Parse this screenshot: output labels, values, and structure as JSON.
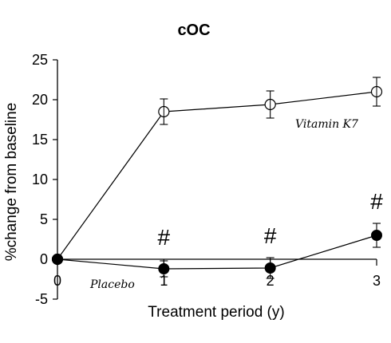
{
  "chart_data": {
    "type": "line",
    "title": "cOC",
    "xlabel": "Treatment period (y)",
    "ylabel": "%change from baseline",
    "x": [
      0,
      1,
      2,
      3
    ],
    "xlim": [
      0,
      3
    ],
    "ylim": [
      -5,
      25
    ],
    "xticks": [
      "0",
      "1",
      "2",
      "3"
    ],
    "yticks": [
      "25",
      "20",
      "15",
      "10",
      "5",
      "0",
      "-5"
    ],
    "grid": false,
    "series": [
      {
        "name": "Vitamin K7",
        "marker": "open-circle",
        "values": [
          0,
          18.5,
          19.4,
          21.0
        ],
        "error": [
          0,
          1.6,
          1.7,
          1.8
        ]
      },
      {
        "name": "Placebo",
        "marker": "filled-circle",
        "values": [
          0,
          -1.2,
          -1.1,
          3.0
        ],
        "error": [
          0,
          1.0,
          1.3,
          1.5
        ]
      }
    ],
    "annotations": [
      {
        "text": "#",
        "x": 1
      },
      {
        "text": "#",
        "x": 2
      },
      {
        "text": "#",
        "x": 3
      }
    ]
  }
}
